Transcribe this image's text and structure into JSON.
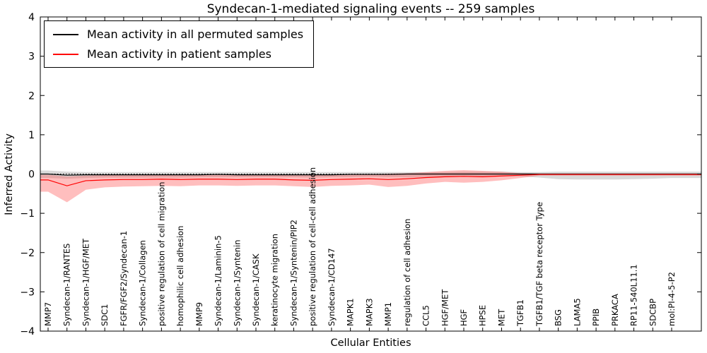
{
  "chart_data": {
    "type": "line",
    "title": "Syndecan-1-mediated signaling events -- 259 samples",
    "xlabel": "Cellular Entities",
    "ylabel": "Inferred Activity",
    "ylim": [
      -4,
      4
    ],
    "yticks": [
      -4,
      -3,
      -2,
      -1,
      0,
      1,
      2,
      3,
      4
    ],
    "grid": false,
    "zero_line_style": "dotted",
    "legend_position": "upper-left",
    "legend": [
      "Mean activity in all permuted samples",
      "Mean activity in patient samples"
    ],
    "categories": [
      "MMP7",
      "Syndecan-1/RANTES",
      "Syndecan-1/HGF/MET",
      "SDC1",
      "FGFR/FGF2/Syndecan-1",
      "Syndecan-1/Collagen",
      "positive regulation of cell migration",
      "homophilic cell adhesion",
      "MMP9",
      "Syndecan-1/Laminin-5",
      "Syndecan-1/Syntenin",
      "Syndecan-1/CASK",
      "keratinocyte migration",
      "Syndecan-1/Syntenin/PIP2",
      "positive regulation of cell-cell adhesion",
      "Syndecan-1/CD147",
      "MAPK1",
      "MAPK3",
      "MMP1",
      "regulation of cell adhesion",
      "CCL5",
      "HGF/MET",
      "HGF",
      "HPSE",
      "MET",
      "TGFB1",
      "TGFB1/TGF beta receptor Type",
      "BSG",
      "LAMA5",
      "PPIB",
      "PRKACA",
      "RP11-540L11.1",
      "SDCBP",
      "mol:PI-4-5-P2"
    ],
    "series": [
      {
        "name": "Mean activity in all permuted samples",
        "color": "#000000",
        "band_color": "#aaaaaa",
        "band_opacity": 0.45,
        "values": [
          0,
          -0.03,
          -0.02,
          -0.02,
          -0.02,
          -0.02,
          -0.02,
          -0.02,
          -0.02,
          -0.01,
          -0.02,
          -0.02,
          -0.02,
          -0.02,
          -0.02,
          -0.02,
          -0.01,
          -0.01,
          -0.01,
          0,
          0,
          0,
          0,
          0,
          0,
          0,
          0,
          0,
          0,
          0,
          0,
          0,
          0,
          0
        ],
        "band_low": [
          -0.1,
          -0.12,
          -0.1,
          -0.09,
          -0.09,
          -0.09,
          -0.09,
          -0.09,
          -0.08,
          -0.08,
          -0.08,
          -0.08,
          -0.08,
          -0.08,
          -0.09,
          -0.08,
          -0.08,
          -0.07,
          -0.08,
          -0.08,
          -0.07,
          -0.07,
          -0.07,
          -0.07,
          -0.06,
          -0.06,
          -0.09,
          -0.13,
          -0.14,
          -0.14,
          -0.14,
          -0.13,
          -0.12,
          -0.1
        ],
        "band_high": [
          0.09,
          0.06,
          0.05,
          0.05,
          0.05,
          0.05,
          0.05,
          0.05,
          0.05,
          0.05,
          0.05,
          0.05,
          0.05,
          0.05,
          0.05,
          0.05,
          0.05,
          0.05,
          0.05,
          0.05,
          0.05,
          0.05,
          0.06,
          0.06,
          0.06,
          0.05,
          0.05,
          0.06,
          0.06,
          0.06,
          0.06,
          0.06,
          0.06,
          0.06
        ]
      },
      {
        "name": "Mean activity in patient samples",
        "color": "#ff0000",
        "band_color": "#ff4444",
        "band_opacity": 0.35,
        "values": [
          -0.15,
          -0.3,
          -0.17,
          -0.15,
          -0.14,
          -0.14,
          -0.13,
          -0.14,
          -0.13,
          -0.13,
          -0.14,
          -0.13,
          -0.13,
          -0.15,
          -0.16,
          -0.14,
          -0.13,
          -0.12,
          -0.14,
          -0.12,
          -0.09,
          -0.07,
          -0.06,
          -0.07,
          -0.05,
          -0.03,
          -0.01,
          -0.01,
          -0.01,
          -0.01,
          -0.01,
          -0.01,
          -0.01,
          -0.01
        ],
        "band_low": [
          -0.45,
          -0.72,
          -0.4,
          -0.34,
          -0.32,
          -0.31,
          -0.3,
          -0.31,
          -0.29,
          -0.29,
          -0.3,
          -0.29,
          -0.29,
          -0.31,
          -0.33,
          -0.3,
          -0.29,
          -0.27,
          -0.33,
          -0.3,
          -0.24,
          -0.2,
          -0.22,
          -0.2,
          -0.16,
          -0.1,
          -0.04,
          -0.04,
          -0.04,
          -0.04,
          -0.04,
          -0.04,
          -0.04,
          -0.04
        ],
        "band_high": [
          -0.02,
          -0.06,
          -0.04,
          -0.03,
          -0.03,
          -0.03,
          -0.02,
          -0.03,
          -0.02,
          -0.02,
          -0.03,
          -0.02,
          -0.02,
          -0.03,
          -0.03,
          -0.02,
          -0.02,
          -0.01,
          0.01,
          0.02,
          0.05,
          0.08,
          0.1,
          0.08,
          0.06,
          0.02,
          0.01,
          0.01,
          0.01,
          0.01,
          0.01,
          0.01,
          0.01,
          0.01
        ]
      }
    ]
  }
}
